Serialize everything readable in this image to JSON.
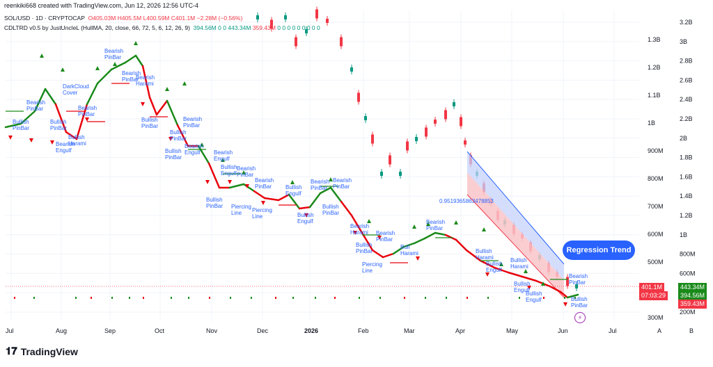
{
  "header": {
    "created": "reenkiki668 created with TradingView.com, Jun 12, 2026 12:56 UTC-4"
  },
  "symbol": {
    "title": "SOL/USD · 1D · CRYPTOCAP",
    "o": "O405.03M",
    "h": "H405.5M",
    "l": "L400.59M",
    "c": "C401.1M",
    "chg": "−2.28M (−0.56%)"
  },
  "indicator": {
    "title": "CDLTRD v0.5 by JustUncleL (HullMA, 20, close, 66, 72, 5, 6, 12, 26, 9)",
    "v1": "394.56M",
    "v2": "0",
    "v3": "0",
    "v4": "443.34M",
    "v5": "359.43M",
    "zeros": "0  0  0  0  0  0  0  0  0"
  },
  "colors": {
    "up": "#089981",
    "down": "#f23645",
    "hull_up": "#1a8a1a",
    "hull_down": "#e8000b",
    "regression": "#2962ff",
    "pattern_text": "#2962ff"
  },
  "right_axis": [
    "3.2B",
    "3B",
    "2.8B",
    "2.6B",
    "2.4B",
    "2.2B",
    "2B",
    "1.8B",
    "1.6B",
    "1.4B",
    "1.2B",
    "1B",
    "800M",
    "600M",
    "400M",
    "200M"
  ],
  "left_axis": [
    "1.3B",
    "1.2B",
    "1.1B",
    "1B",
    "900M",
    "800M",
    "700M",
    "600M",
    "500M",
    "400M",
    "300M"
  ],
  "x_axis": [
    "Jul",
    "Aug",
    "Sep",
    "Oct",
    "Nov",
    "Dec",
    "2026",
    "Feb",
    "Mar",
    "Apr",
    "May",
    "Jun",
    "Jul"
  ],
  "price_tags": {
    "last": "401.1M",
    "countdown": "07:03:29",
    "hull": "443.34M",
    "lower": "394.56M",
    "low": "359.43M"
  },
  "regression": {
    "label": "Regression Trend",
    "r_value": "0.9519365863478853"
  },
  "patterns": [
    "Bearish PinBar",
    "Bearish Engulf",
    "Bearish Harami",
    "DarkCloud Cover",
    "Bullish PinBar",
    "Bullish Engulf",
    "Bullish Harami",
    "Piercing Line",
    "Bull Harami"
  ],
  "footer": {
    "brand": "TradingView",
    "btn_a": "A",
    "btn_b": "B"
  }
}
